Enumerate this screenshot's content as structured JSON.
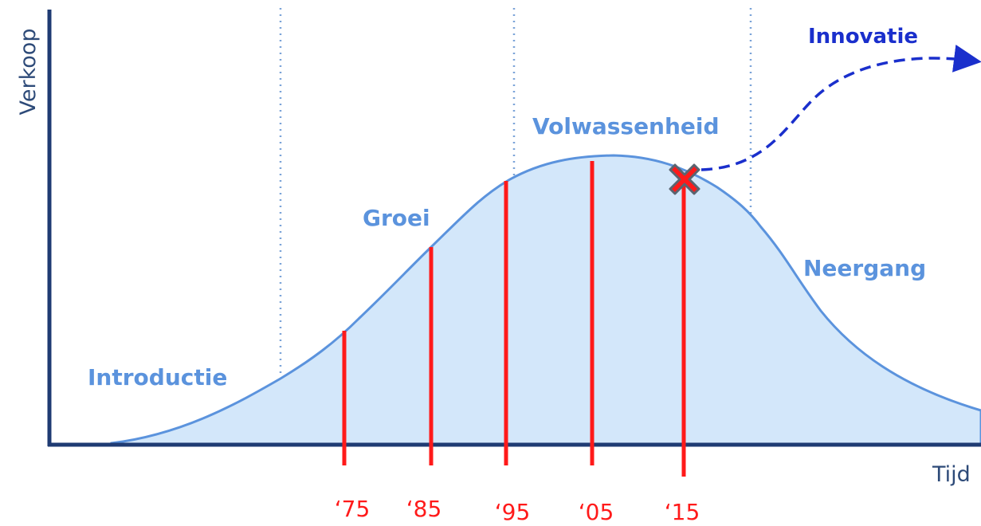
{
  "axes": {
    "y_label": "Verkoop",
    "x_label": "Tijd"
  },
  "phases": [
    "Introductie",
    "Groei",
    "Volwassenheid",
    "Neergang"
  ],
  "innovation": "Innovatie",
  "years": [
    "‘75",
    "‘85",
    "‘95",
    "‘05",
    "‘15"
  ]
}
